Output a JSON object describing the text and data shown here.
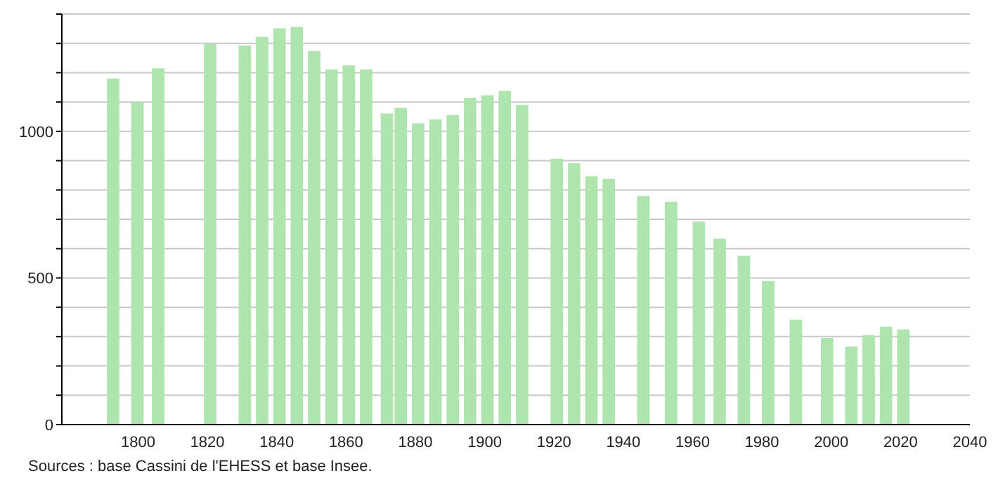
{
  "chart_data": {
    "type": "bar",
    "x": [
      1793,
      1800,
      1806,
      1821,
      1831,
      1836,
      1841,
      1846,
      1851,
      1856,
      1861,
      1866,
      1872,
      1876,
      1881,
      1886,
      1891,
      1896,
      1901,
      1906,
      1911,
      1921,
      1926,
      1931,
      1936,
      1946,
      1954,
      1962,
      1968,
      1975,
      1982,
      1990,
      1999,
      2006,
      2011,
      2016,
      2021
    ],
    "values": [
      1180,
      1100,
      1215,
      1298,
      1293,
      1322,
      1351,
      1356,
      1274,
      1211,
      1225,
      1211,
      1061,
      1080,
      1027,
      1041,
      1056,
      1114,
      1123,
      1138,
      1090,
      906,
      891,
      847,
      838,
      780,
      760,
      692,
      634,
      576,
      489,
      358,
      295,
      266,
      305,
      334,
      324
    ],
    "color": "#aee5ae",
    "xlim": [
      1778,
      2040
    ],
    "xticks": [
      1800,
      1820,
      1840,
      1860,
      1880,
      1900,
      1920,
      1940,
      1960,
      1980,
      2000,
      2020,
      2040
    ],
    "ylim": [
      0,
      1400
    ],
    "yticks": [
      0,
      {
        "value": 100,
        "label": null
      },
      {
        "value": 200,
        "label": null
      },
      {
        "value": 300,
        "label": null
      },
      {
        "value": 400,
        "label": null
      },
      500,
      {
        "value": 600,
        "label": null
      },
      {
        "value": 700,
        "label": null
      },
      {
        "value": 800,
        "label": null
      },
      {
        "value": 900,
        "label": null
      },
      1000,
      {
        "value": 1100,
        "label": null
      },
      {
        "value": 1200,
        "label": null
      },
      {
        "value": 1300,
        "label": null
      },
      {
        "value": 1400,
        "label": null
      }
    ],
    "grid": "y",
    "annotations": [
      "Sources : base Cassini de l'EHESS et base Insee."
    ]
  }
}
